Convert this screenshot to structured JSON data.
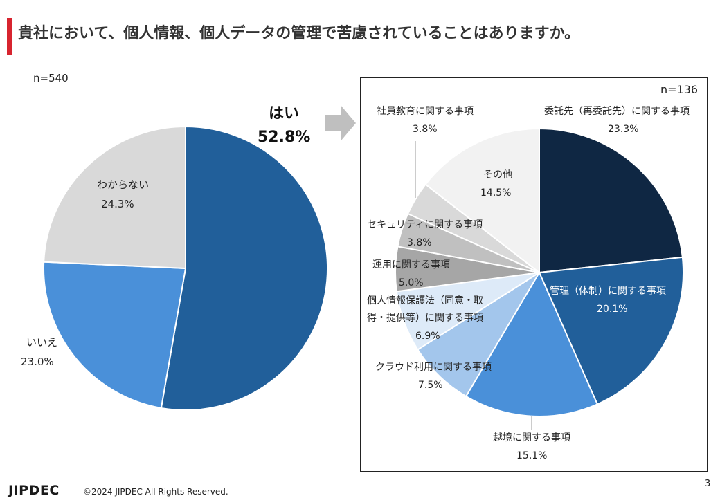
{
  "header": {
    "title": "貴社において、個人情報、個人データの管理で苦慮されていることはありますか。"
  },
  "footer": {
    "logo": "JIPDEC",
    "copyright": "©2024 JIPDEC All Rights Reserved.",
    "page": "3"
  },
  "chart_data": [
    {
      "type": "pie",
      "n_label": "n=540",
      "slices": [
        {
          "name": "はい",
          "value": 52.8,
          "label": "52.8%",
          "color": "#215f9a"
        },
        {
          "name": "いいえ",
          "value": 23.0,
          "label": "23.0%",
          "color": "#4a90d9"
        },
        {
          "name": "わからない",
          "value": 24.3,
          "label": "24.3%",
          "color": "#d9d9d9"
        }
      ]
    },
    {
      "type": "pie",
      "n_label": "n=136",
      "slices": [
        {
          "name": "委託先（再委託先）に関する事項",
          "value": 23.3,
          "label": "23.3%",
          "color": "#0f2743"
        },
        {
          "name": "管理（体制）に関する事項",
          "value": 20.1,
          "label": "20.1%",
          "color": "#215f9a"
        },
        {
          "name": "越境に関する事項",
          "value": 15.1,
          "label": "15.1%",
          "color": "#4a90d9"
        },
        {
          "name": "クラウド利用に関する事項",
          "value": 7.5,
          "label": "7.5%",
          "color": "#a3c6ec"
        },
        {
          "name_lines": [
            "個人情報保護法（同意・取",
            "得・提供等）に関する事項"
          ],
          "value": 6.9,
          "label": "6.9%",
          "color": "#ddeaf8"
        },
        {
          "name": "運用に関する事項",
          "value": 5.0,
          "label": "5.0%",
          "color": "#a6a6a6"
        },
        {
          "name": "セキュリティに関する事項",
          "value": 3.8,
          "label": "3.8%",
          "color": "#c0c0c0"
        },
        {
          "name": "社員教育に関する事項",
          "value": 3.8,
          "label": "3.8%",
          "color": "#d9d9d9"
        },
        {
          "name": "その他",
          "value": 14.5,
          "label": "14.5%",
          "color": "#f2f2f2"
        }
      ]
    }
  ]
}
